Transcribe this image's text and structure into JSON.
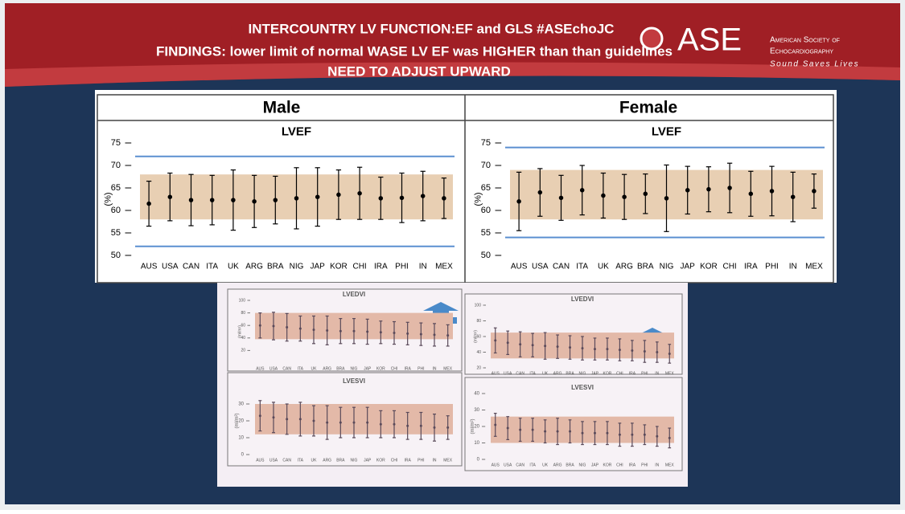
{
  "header": {
    "lines": [
      "INTERCOUNTRY LV FUNCTION:EF and GLS #ASEchoJC",
      "FINDINGS: lower limit of normal WASE LV EF was HIGHER than than guidelines",
      "NEED TO ADJUST UPWARD"
    ]
  },
  "logo": {
    "mark": "ASE",
    "name_lines": [
      "American Society of",
      "Echocardiography"
    ],
    "tagline": "Sound Saves Lives"
  },
  "panels": [
    "Male",
    "Female"
  ],
  "chart_data": [
    {
      "type": "errorbar",
      "title": "LVEF",
      "y_label": "(%)",
      "categories": [
        "AUS",
        "USA",
        "CAN",
        "ITA",
        "UK",
        "ARG",
        "BRA",
        "NIG",
        "JAP",
        "KOR",
        "CHI",
        "IRA",
        "PHI",
        "IN",
        "MEX"
      ],
      "series": [
        {
          "color": "#000000",
          "values": [
            61.5,
            63,
            62.3,
            62.3,
            62.3,
            62,
            62.3,
            62.7,
            63,
            63.5,
            63.8,
            62.7,
            62.8,
            63.2,
            62.7
          ],
          "errors": [
            5,
            5.3,
            5.7,
            5.5,
            6.7,
            5.8,
            5.3,
            6.8,
            6.5,
            5.5,
            5.8,
            4.7,
            5.5,
            5.5,
            4.5
          ]
        }
      ],
      "band": [
        58,
        68
      ],
      "band_color": "#e8cfb3",
      "reference_lines": [
        52,
        72
      ],
      "reference_color": "#5b8fd0",
      "ylim": [
        50,
        75
      ],
      "yticks": [
        50,
        55,
        60,
        65,
        70,
        75
      ]
    },
    {
      "type": "errorbar",
      "title": "LVEF",
      "y_label": "(%)",
      "categories": [
        "AUS",
        "USA",
        "CAN",
        "ITA",
        "UK",
        "ARG",
        "BRA",
        "NIG",
        "JAP",
        "KOR",
        "CHI",
        "IRA",
        "PHI",
        "IN",
        "MEX"
      ],
      "series": [
        {
          "color": "#000000",
          "values": [
            62,
            64,
            62.8,
            64.5,
            63.3,
            63,
            63.7,
            62.7,
            64.5,
            64.7,
            65,
            63.7,
            64.3,
            63,
            64.3
          ],
          "errors": [
            6.5,
            5.3,
            5,
            5.5,
            5,
            5,
            4.4,
            7.4,
            5.3,
            5,
            5.5,
            5,
            5.5,
            5.5,
            3.8
          ]
        }
      ],
      "band": [
        58,
        69
      ],
      "band_color": "#e8cfb3",
      "reference_lines": [
        54,
        74
      ],
      "reference_color": "#5b8fd0",
      "ylim": [
        50,
        75
      ],
      "yticks": [
        50,
        55,
        60,
        65,
        70,
        75
      ]
    },
    {
      "type": "errorbar",
      "title": "LVEDVI",
      "y_label": "(ml/m²)",
      "categories": [
        "AUS",
        "USA",
        "CAN",
        "ITA",
        "UK",
        "ARG",
        "BRA",
        "NIG",
        "JAP",
        "KOR",
        "CHI",
        "IRA",
        "PHI",
        "IN",
        "MEX"
      ],
      "series": [
        {
          "color": "#5a4a5a",
          "values": [
            60,
            59,
            57,
            55,
            53,
            52,
            51,
            51,
            50,
            49,
            48,
            47,
            46,
            45,
            44
          ],
          "errors": [
            20,
            22,
            22,
            20,
            22,
            23,
            20,
            20,
            20,
            18,
            18,
            18,
            18,
            18,
            17
          ]
        }
      ],
      "band": [
        38,
        80
      ],
      "band_color": "#e3b9a8",
      "ylim": [
        0,
        100
      ],
      "yticks": [
        20,
        40,
        60,
        80,
        100
      ]
    },
    {
      "type": "errorbar",
      "title": "LVEDVI",
      "y_label": "(ml/m²)",
      "categories": [
        "AUS",
        "USA",
        "CAN",
        "ITA",
        "UK",
        "ARG",
        "BRA",
        "NIG",
        "JAP",
        "KOR",
        "CHI",
        "IRA",
        "PHI",
        "IN",
        "MEX"
      ],
      "series": [
        {
          "color": "#5a4a5a",
          "values": [
            55,
            52,
            50,
            49,
            48,
            47,
            46,
            45,
            44,
            44,
            43,
            42,
            41,
            40,
            38
          ],
          "errors": [
            16,
            15,
            16,
            15,
            17,
            15,
            15,
            15,
            14,
            14,
            14,
            13,
            14,
            13,
            12
          ]
        }
      ],
      "band": [
        32,
        65
      ],
      "band_color": "#e3b9a8",
      "ylim": [
        20,
        100
      ],
      "yticks": [
        20,
        40,
        60,
        80,
        100
      ]
    },
    {
      "type": "errorbar",
      "title": "LVESVI",
      "y_label": "(ml/m²)",
      "categories": [
        "AUS",
        "USA",
        "CAN",
        "ITA",
        "UK",
        "ARG",
        "BRA",
        "NIG",
        "JAP",
        "KOR",
        "CHI",
        "IRA",
        "PHI",
        "IN",
        "MEX"
      ],
      "series": [
        {
          "color": "#5a4a5a",
          "values": [
            23,
            22,
            21,
            21,
            20,
            19,
            19,
            19,
            19,
            18,
            18,
            17,
            17,
            16,
            16
          ],
          "errors": [
            9,
            9,
            9,
            10,
            9,
            10,
            9,
            9,
            9,
            8,
            8,
            8,
            8,
            8,
            7
          ]
        }
      ],
      "band": [
        12,
        30
      ],
      "band_color": "#e3b9a8",
      "ylim": [
        0,
        40
      ],
      "yticks": [
        0,
        10,
        20,
        30
      ]
    },
    {
      "type": "errorbar",
      "title": "LVESVI",
      "y_label": "(ml/m²)",
      "categories": [
        "AUS",
        "USA",
        "CAN",
        "ITA",
        "UK",
        "ARG",
        "BRA",
        "NIG",
        "JAP",
        "KOR",
        "CHI",
        "IRA",
        "PHI",
        "IN",
        "MEX"
      ],
      "series": [
        {
          "color": "#5a4a5a",
          "values": [
            21,
            19,
            18,
            18,
            17,
            17,
            17,
            16,
            16,
            16,
            15,
            15,
            15,
            14,
            13
          ],
          "errors": [
            7,
            7,
            7,
            7,
            7,
            8,
            7,
            7,
            7,
            7,
            7,
            7,
            6,
            6,
            6
          ]
        }
      ],
      "band": [
        10,
        26
      ],
      "band_color": "#e3b9a8",
      "ylim": [
        0,
        40
      ],
      "yticks": [
        0,
        10,
        20,
        30,
        40
      ]
    }
  ]
}
